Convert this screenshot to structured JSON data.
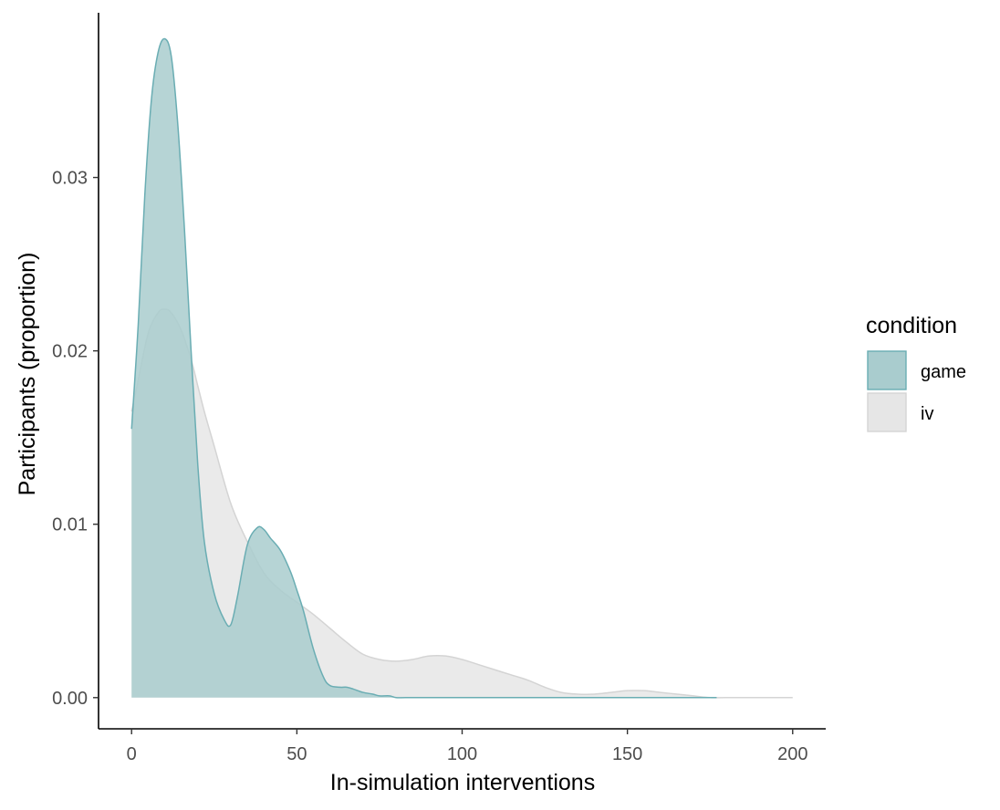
{
  "chart_data": {
    "type": "area",
    "subtype": "density",
    "xlabel": "In-simulation interventions",
    "ylabel": "Participants (proportion)",
    "xlim": [
      -10,
      210
    ],
    "ylim": [
      -0.0018,
      0.0395
    ],
    "x_ticks": [
      0,
      50,
      100,
      150,
      200
    ],
    "x_tick_labels": [
      "0",
      "50",
      "100",
      "150",
      "200"
    ],
    "y_ticks": [
      0,
      0.01,
      0.02,
      0.03
    ],
    "y_tick_labels": [
      "0.00",
      "0.01",
      "0.02",
      "0.03"
    ],
    "grid": false,
    "legend": {
      "title": "condition",
      "position": "right",
      "entries": [
        {
          "label": "game",
          "fill": "#a9ccce",
          "stroke": "#6aadb3"
        },
        {
          "label": "iv",
          "fill": "#e6e6e6",
          "stroke": "#d4d4d4"
        }
      ]
    },
    "series": [
      {
        "name": "iv",
        "fill": "#e6e6e6",
        "stroke": "#d4d4d4",
        "opacity": 0.85,
        "x": [
          0,
          2,
          5,
          8,
          10,
          12,
          15,
          18,
          20,
          22,
          25,
          30,
          35,
          40,
          45,
          50,
          55,
          60,
          65,
          70,
          75,
          80,
          85,
          90,
          95,
          100,
          105,
          110,
          115,
          120,
          125,
          130,
          135,
          140,
          145,
          150,
          155,
          160,
          165,
          170,
          175,
          180,
          190,
          200
        ],
        "y": [
          0.0165,
          0.0183,
          0.021,
          0.0222,
          0.0224,
          0.0222,
          0.0212,
          0.0195,
          0.018,
          0.0165,
          0.0145,
          0.0112,
          0.009,
          0.0072,
          0.0062,
          0.0055,
          0.0048,
          0.004,
          0.0032,
          0.0025,
          0.0022,
          0.0021,
          0.0022,
          0.0024,
          0.0024,
          0.0022,
          0.0019,
          0.0016,
          0.0013,
          0.001,
          0.0006,
          0.0003,
          0.0002,
          0.0002,
          0.0003,
          0.0004,
          0.0004,
          0.0003,
          0.0002,
          0.0001,
          0.0,
          0.0,
          0.0,
          0.0
        ]
      },
      {
        "name": "game",
        "fill": "#a9ccce",
        "stroke": "#6aadb3",
        "opacity": 0.85,
        "x": [
          0,
          2,
          4,
          6,
          8,
          10,
          12,
          14,
          16,
          18,
          20,
          22,
          25,
          28,
          30,
          32,
          35,
          38,
          40,
          42,
          45,
          48,
          50,
          52,
          55,
          58,
          60,
          63,
          65,
          67,
          70,
          73,
          75,
          78,
          80,
          83,
          90,
          100,
          120,
          140,
          160,
          177
        ],
        "y": [
          0.0155,
          0.0215,
          0.029,
          0.0345,
          0.0372,
          0.038,
          0.037,
          0.033,
          0.027,
          0.02,
          0.0135,
          0.009,
          0.006,
          0.0045,
          0.0042,
          0.0058,
          0.0088,
          0.0098,
          0.0097,
          0.0092,
          0.0085,
          0.0073,
          0.0062,
          0.005,
          0.0028,
          0.0012,
          0.0007,
          0.0006,
          0.0006,
          0.0005,
          0.0003,
          0.0002,
          0.0001,
          0.0001,
          0.0,
          0.0,
          0.0,
          0.0,
          0.0,
          0.0,
          0.0,
          0.0
        ]
      }
    ]
  }
}
